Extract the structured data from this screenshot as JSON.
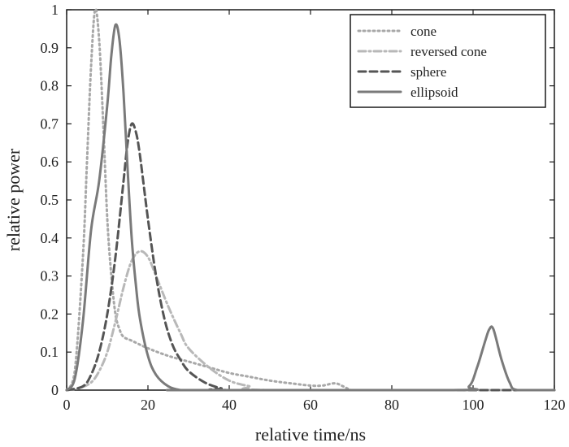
{
  "chart_data": {
    "type": "line",
    "xlabel": "relative time/ns",
    "ylabel": "relative power",
    "xlim": [
      0,
      120
    ],
    "ylim": [
      0,
      1
    ],
    "xticks": [
      "0",
      "20",
      "40",
      "60",
      "80",
      "100",
      "120"
    ],
    "yticks": [
      "0",
      "0.1",
      "0.2",
      "0.3",
      "0.4",
      "0.5",
      "0.6",
      "0.7",
      "0.8",
      "0.9",
      "1"
    ],
    "grid": false,
    "legend_position": "top-right",
    "series": [
      {
        "name": "cone",
        "style": "dotted",
        "color": "#a8a8a8",
        "x": [
          0,
          2,
          4,
          5,
          6,
          7,
          8,
          9,
          10,
          11,
          12,
          13,
          14,
          16,
          20,
          25,
          30,
          35,
          40,
          45,
          50,
          55,
          60,
          63,
          66,
          68,
          70,
          72,
          120
        ],
        "y": [
          0,
          0.05,
          0.35,
          0.6,
          0.85,
          1.0,
          0.92,
          0.7,
          0.45,
          0.3,
          0.2,
          0.16,
          0.14,
          0.13,
          0.11,
          0.09,
          0.075,
          0.06,
          0.045,
          0.035,
          0.025,
          0.018,
          0.012,
          0.012,
          0.018,
          0.01,
          0,
          0,
          0
        ]
      },
      {
        "name": "reversed cone",
        "style": "dashdot",
        "color": "#b8b8b8",
        "x": [
          0,
          3,
          6,
          8,
          10,
          12,
          14,
          16,
          18,
          20,
          22,
          25,
          28,
          30,
          35,
          40,
          45,
          50,
          120
        ],
        "y": [
          0,
          0.005,
          0.02,
          0.05,
          0.1,
          0.18,
          0.27,
          0.34,
          0.365,
          0.35,
          0.3,
          0.22,
          0.15,
          0.11,
          0.06,
          0.025,
          0.01,
          0,
          0
        ]
      },
      {
        "name": "sphere",
        "style": "dashed",
        "color": "#555555",
        "x": [
          0,
          4,
          6,
          8,
          10,
          12,
          14,
          15,
          16,
          17,
          18,
          20,
          22,
          24,
          26,
          28,
          30,
          34,
          38,
          42,
          120
        ],
        "y": [
          0,
          0.01,
          0.04,
          0.1,
          0.2,
          0.35,
          0.55,
          0.65,
          0.7,
          0.68,
          0.62,
          0.45,
          0.3,
          0.19,
          0.12,
          0.08,
          0.05,
          0.02,
          0.005,
          0,
          0
        ]
      },
      {
        "name": "ellipsoid",
        "style": "solid",
        "color": "#7a7a7a",
        "x": [
          0,
          2,
          4,
          6,
          8,
          10,
          11,
          12,
          13,
          14,
          15,
          16,
          17,
          18,
          20,
          22,
          25,
          28,
          30,
          95,
          99,
          101,
          103,
          104,
          105,
          107,
          109,
          111,
          120
        ],
        "y": [
          0,
          0.03,
          0.18,
          0.42,
          0.55,
          0.75,
          0.88,
          0.96,
          0.92,
          0.78,
          0.58,
          0.4,
          0.28,
          0.19,
          0.09,
          0.04,
          0.01,
          0,
          0,
          0,
          0.01,
          0.06,
          0.13,
          0.16,
          0.16,
          0.08,
          0.02,
          0,
          0
        ]
      }
    ]
  }
}
